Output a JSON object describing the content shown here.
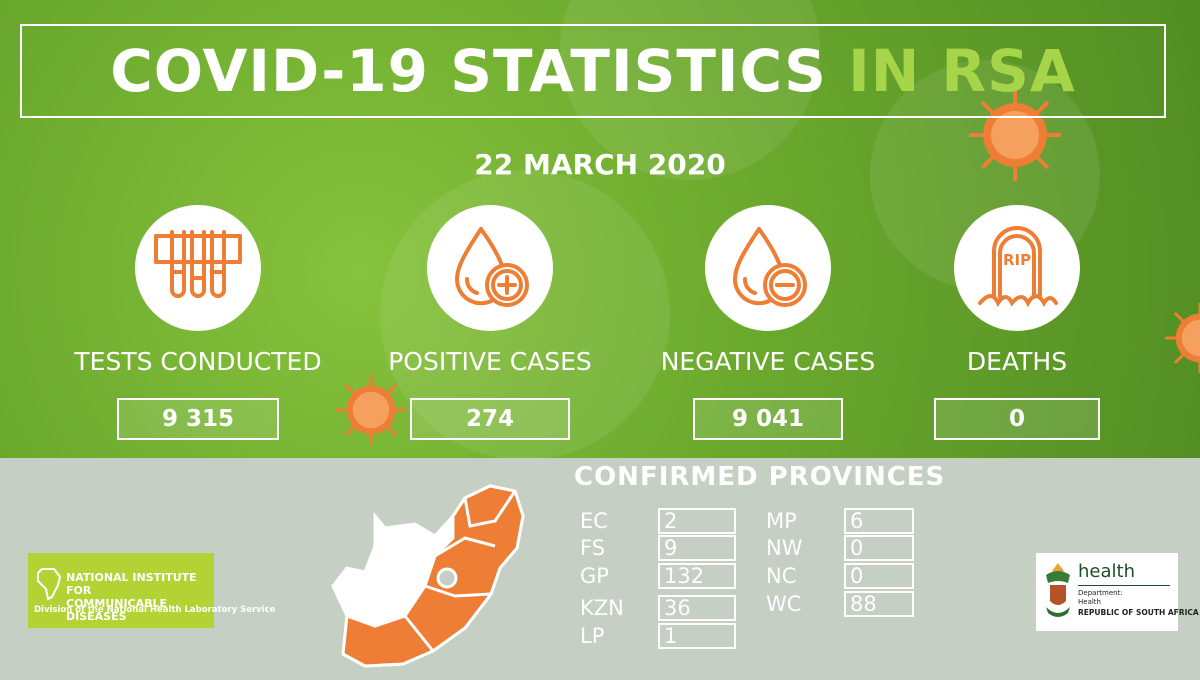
{
  "title": {
    "main": "COVID-19 STATISTICS",
    "accent": "IN RSA"
  },
  "date": "22 MARCH 2020",
  "stats": [
    {
      "label": "TESTS CONDUCTED",
      "value": "9 315",
      "icon": "test-tubes-icon"
    },
    {
      "label": "POSITIVE CASES",
      "value": "274",
      "icon": "blood-drop-plus-icon"
    },
    {
      "label": "NEGATIVE CASES",
      "value": "9 041",
      "icon": "blood-drop-minus-icon"
    },
    {
      "label": "DEATHS",
      "value": "0",
      "icon": "tombstone-icon",
      "icon_text": "RIP"
    }
  ],
  "provinces": {
    "title": "CONFIRMED PROVINCES",
    "left": [
      {
        "code": "EC",
        "count": "2"
      },
      {
        "code": "FS",
        "count": "9"
      },
      {
        "code": "GP",
        "count": "132"
      },
      {
        "code": "KZN",
        "count": "36"
      },
      {
        "code": "LP",
        "count": "1"
      }
    ],
    "right": [
      {
        "code": "MP",
        "count": "6"
      },
      {
        "code": "NW",
        "count": "0"
      },
      {
        "code": "NC",
        "count": "0"
      },
      {
        "code": "WC",
        "count": "88"
      }
    ]
  },
  "logos": {
    "nicd": {
      "line1": "NATIONAL INSTITUTE FOR",
      "line2": "COMMUNICABLE DISEASES",
      "sub": "Division of the National Health Laboratory Service"
    },
    "health": {
      "word": "health",
      "dept": "Department:",
      "dept2": "Health",
      "republic": "REPUBLIC OF SOUTH AFRICA"
    }
  },
  "colors": {
    "accent_green": "#a6d54a",
    "icon_orange": "#ee7d35",
    "map_orange": "#ee7d35",
    "logo_green": "#b3d334"
  }
}
